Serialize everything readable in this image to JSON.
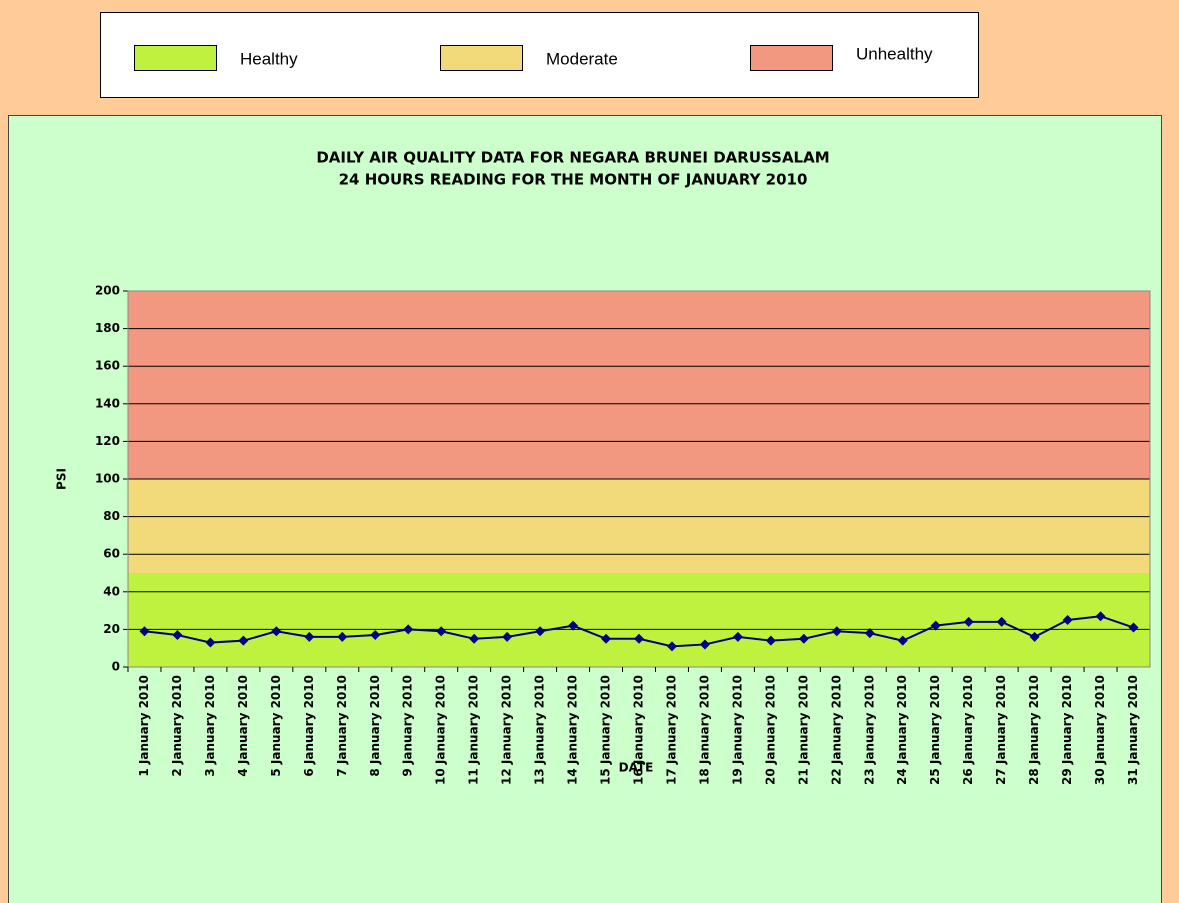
{
  "chart_data": {
    "type": "line",
    "title": "DAILY AIR QUALITY DATA FOR NEGARA BRUNEI DARUSSALAM",
    "subtitle": "24 HOURS READING FOR THE MONTH OF JANUARY 2010",
    "y_label": "PSI",
    "x_label": "DATE",
    "bands": [
      {
        "name": "Healthy",
        "color": "#bff23f",
        "from": 0,
        "to": 50
      },
      {
        "name": "Moderate",
        "color": "#f2da7a",
        "from": 50,
        "to": 100
      },
      {
        "name": "Unhealthy",
        "color": "#f29880",
        "from": 100,
        "to": 200
      }
    ],
    "categories": [
      "1 January 2010",
      "2 January 2010",
      "3 January 2010",
      "4 January 2010",
      "5 January 2010",
      "6 January 2010",
      "7 January 2010",
      "8 January 2010",
      "9 January 2010",
      "10 January 2010",
      "11 January 2010",
      "12 January 2010",
      "13 January 2010",
      "14 January 2010",
      "15 January 2010",
      "16 January 2010",
      "17 January 2010",
      "18 January 2010",
      "19 January 2010",
      "20 January 2010",
      "21 January 2010",
      "22 January 2010",
      "23 January 2010",
      "24 January 2010",
      "25 January 2010",
      "26 January 2010",
      "27 January 2010",
      "28 January 2010",
      "29 January 2010",
      "30 January 2010",
      "31 January 2010"
    ],
    "values": [
      19,
      17,
      13,
      14,
      19,
      16,
      16,
      17,
      20,
      19,
      15,
      16,
      19,
      22,
      15,
      15,
      11,
      12,
      16,
      14,
      15,
      19,
      18,
      14,
      22,
      24,
      24,
      16,
      25,
      27,
      21
    ],
    "color": "#000080",
    "ylim": [
      0,
      200
    ],
    "yticks": [
      0,
      20,
      40,
      60,
      80,
      100,
      120,
      140,
      160,
      180,
      200
    ],
    "grid": true
  }
}
